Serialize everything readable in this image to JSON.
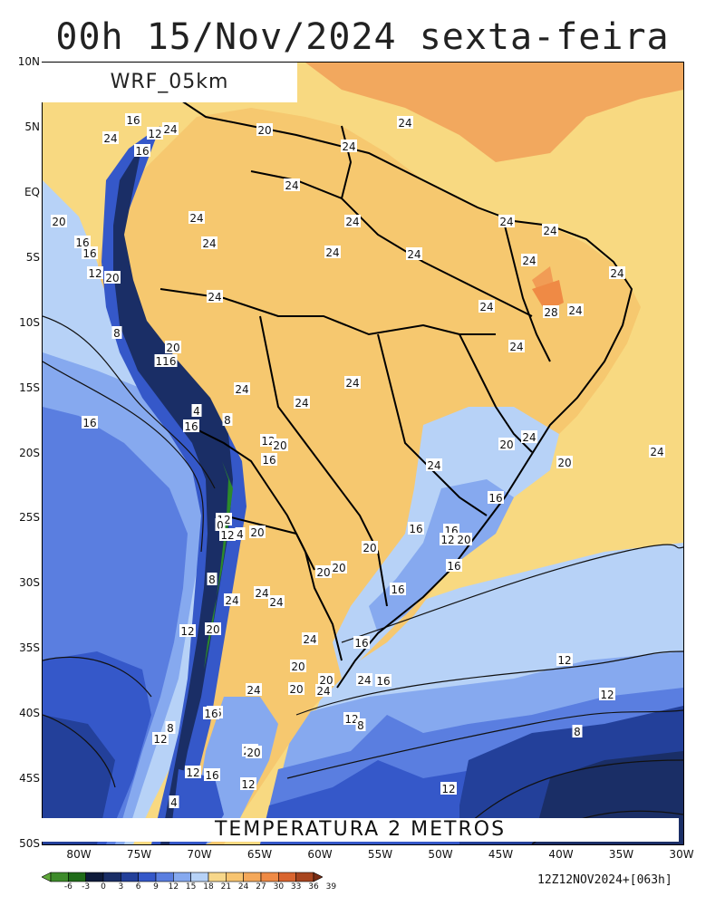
{
  "title": "00h 15/Nov/2024 sexta-feira",
  "model_label": "WRF_05km",
  "bottom_label": "TEMPERATURA 2 METROS",
  "timestamp": "12Z12NOV2024+[063h]",
  "latitude_labels": [
    "10N",
    "5N",
    "EQ",
    "5S",
    "10S",
    "15S",
    "20S",
    "25S",
    "30S",
    "35S",
    "40S",
    "45S",
    "50S"
  ],
  "longitude_labels": [
    "80W",
    "75W",
    "70W",
    "65W",
    "60W",
    "55W",
    "50W",
    "45W",
    "40W",
    "35W",
    "30W"
  ],
  "colorbar": {
    "ticks": [
      "-6",
      "-3",
      "0",
      "3",
      "6",
      "9",
      "12",
      "15",
      "18",
      "21",
      "24",
      "27",
      "30",
      "33",
      "36",
      "39"
    ],
    "colors": [
      "#5fa83a",
      "#3d8b2a",
      "#1f6b18",
      "#0e1a3a",
      "#1a2e66",
      "#23409a",
      "#3558c9",
      "#5a7ee0",
      "#86a9ef",
      "#b7d2f7",
      "#f7d78a",
      "#f7c470",
      "#f4a85a",
      "#ef8a45",
      "#d9652f",
      "#a8451f",
      "#7a2e15"
    ]
  },
  "palette": {
    "ocean_warm": "#f8d981",
    "land_warm": "#f6c86f",
    "hot": "#f19c55",
    "mild": "#b7d2f7",
    "cool": "#86a9ef",
    "cold": "#5a7ee0",
    "colder": "#3558c9",
    "deep": "#23409a",
    "darkest": "#1a2e66",
    "andes_green": "#2c8a2a"
  },
  "contour_labels": [
    {
      "text": "16"
    },
    {
      "text": "12"
    },
    {
      "text": "24"
    },
    {
      "text": "16"
    },
    {
      "text": "24"
    },
    {
      "text": "20"
    },
    {
      "text": "24"
    },
    {
      "text": "24"
    },
    {
      "text": "24"
    },
    {
      "text": "20"
    },
    {
      "text": "16"
    },
    {
      "text": "16"
    },
    {
      "text": "12"
    },
    {
      "text": "20"
    },
    {
      "text": "24"
    },
    {
      "text": "24"
    },
    {
      "text": "24"
    },
    {
      "text": "24"
    },
    {
      "text": "24"
    },
    {
      "text": "24"
    },
    {
      "text": "24"
    },
    {
      "text": "24"
    },
    {
      "text": "24"
    },
    {
      "text": "24"
    },
    {
      "text": "28"
    },
    {
      "text": "24"
    },
    {
      "text": "24"
    },
    {
      "text": "24"
    },
    {
      "text": "8"
    },
    {
      "text": "20"
    },
    {
      "text": "116"
    },
    {
      "text": "24"
    },
    {
      "text": "24"
    },
    {
      "text": "24"
    },
    {
      "text": "16"
    },
    {
      "text": "4"
    },
    {
      "text": "16"
    },
    {
      "text": "8"
    },
    {
      "text": "12"
    },
    {
      "text": "20"
    },
    {
      "text": "16"
    },
    {
      "text": "20"
    },
    {
      "text": "24"
    },
    {
      "text": "24"
    },
    {
      "text": "20"
    },
    {
      "text": "24"
    },
    {
      "text": "16"
    },
    {
      "text": "12"
    },
    {
      "text": "0"
    },
    {
      "text": "4"
    },
    {
      "text": "20"
    },
    {
      "text": "12"
    },
    {
      "text": "16"
    },
    {
      "text": "20"
    },
    {
      "text": "16"
    },
    {
      "text": "12"
    },
    {
      "text": "16"
    },
    {
      "text": "20"
    },
    {
      "text": "20"
    },
    {
      "text": "20"
    },
    {
      "text": "8"
    },
    {
      "text": "24"
    },
    {
      "text": "24"
    },
    {
      "text": "24"
    },
    {
      "text": "16"
    },
    {
      "text": "12"
    },
    {
      "text": "20"
    },
    {
      "text": "24"
    },
    {
      "text": "20"
    },
    {
      "text": "20"
    },
    {
      "text": "16"
    },
    {
      "text": "16"
    },
    {
      "text": "12"
    },
    {
      "text": "12"
    },
    {
      "text": "16"
    },
    {
      "text": "24"
    },
    {
      "text": "12"
    },
    {
      "text": "8"
    },
    {
      "text": "8"
    },
    {
      "text": "20"
    },
    {
      "text": "12"
    },
    {
      "text": "8"
    },
    {
      "text": "12"
    },
    {
      "text": "16"
    },
    {
      "text": "12"
    },
    {
      "text": "4"
    },
    {
      "text": "20"
    },
    {
      "text": "24"
    },
    {
      "text": "24"
    },
    {
      "text": "20"
    },
    {
      "text": "16"
    },
    {
      "text": "12"
    }
  ]
}
